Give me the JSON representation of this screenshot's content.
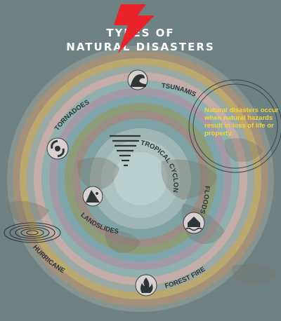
{
  "title": {
    "line1": "TYPES OF",
    "line2": "NATURAL DISASTERS"
  },
  "labels": {
    "tsunamis": "TSUNAMIS",
    "tornadoes": "TORNADOES",
    "tropical_cyclones": "TROPICAL CYCLONES",
    "floods": "FLOODS",
    "landslides": "LANDSLIDES",
    "hurricane": "HURRICANE",
    "forest_fire": "FOREST FIRE"
  },
  "note": "Natural disasters occur when natural hazards result in loss of life or property.",
  "icons": [
    "lightning-bolt-icon",
    "tsunami-wave-icon",
    "tornado-hurricane-icon",
    "tornado-funnel-icon",
    "landslide-icon",
    "flood-house-icon",
    "forest-fire-icon",
    "spiral-icon"
  ],
  "colors": {
    "background": "#6e8284",
    "accent": "#e8232a",
    "note_text": "#f5d33b"
  }
}
